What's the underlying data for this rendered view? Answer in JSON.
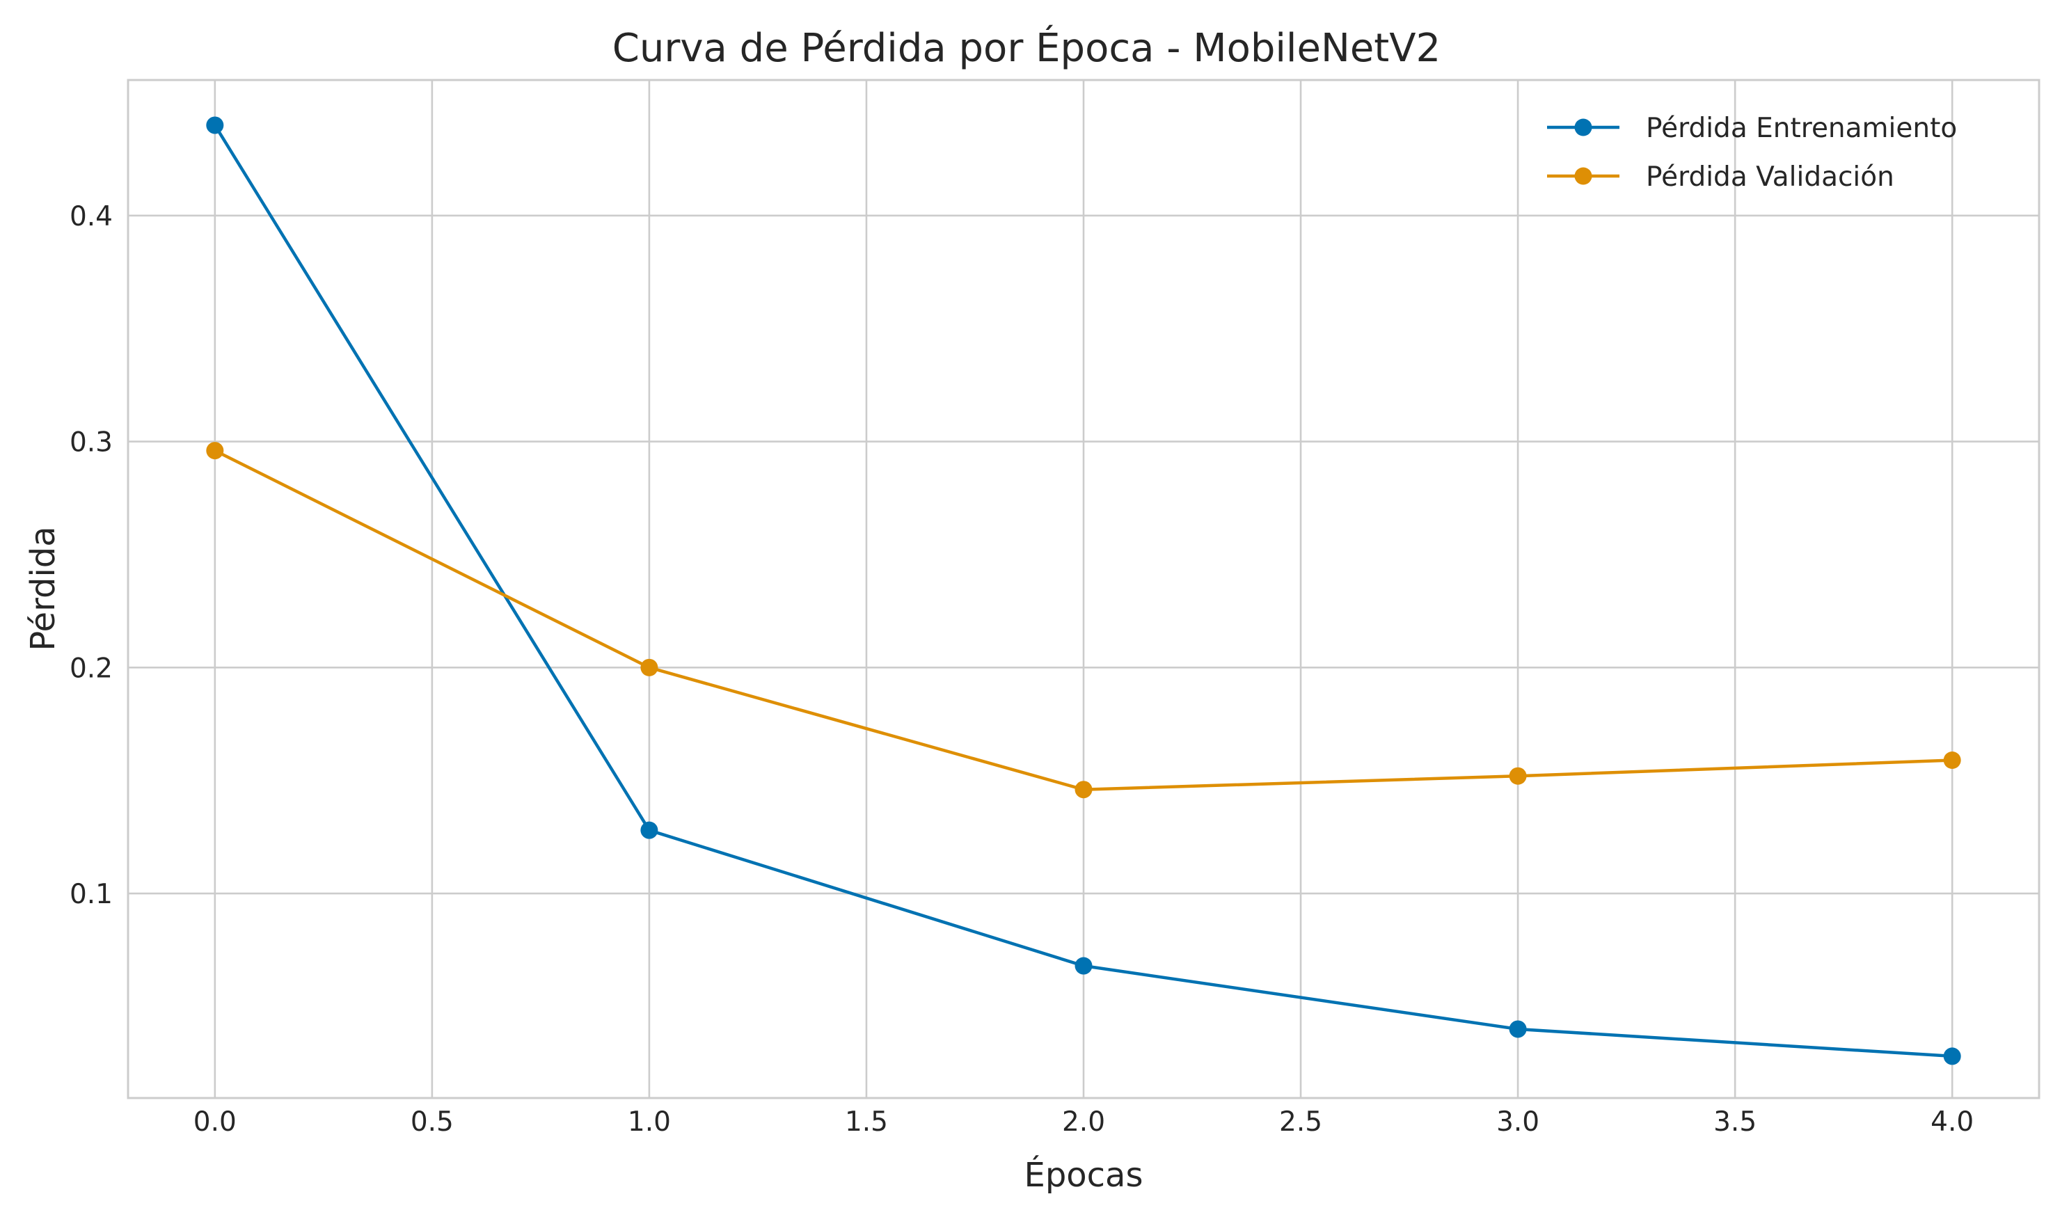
{
  "chart_data": {
    "type": "line",
    "title": "Curva de Pérdida por Época - MobileNetV2",
    "xlabel": "Épocas",
    "ylabel": "Pérdida",
    "x": [
      0,
      1,
      2,
      3,
      4
    ],
    "xlim": [
      -0.2,
      4.2
    ],
    "ylim": [
      0.0095,
      0.46
    ],
    "xticks": [
      0.0,
      0.5,
      1.0,
      1.5,
      2.0,
      2.5,
      3.0,
      3.5,
      4.0
    ],
    "xtick_labels": [
      "0.0",
      "0.5",
      "1.0",
      "1.5",
      "2.0",
      "2.5",
      "3.0",
      "3.5",
      "4.0"
    ],
    "yticks": [
      0.1,
      0.2,
      0.3,
      0.4
    ],
    "ytick_labels": [
      "0.1",
      "0.2",
      "0.3",
      "0.4"
    ],
    "grid": true,
    "legend_position": "top-right",
    "series": [
      {
        "name": "Pérdida Entrenamiento",
        "color": "#0072b2",
        "marker": "circle",
        "values": [
          0.44,
          0.128,
          0.068,
          0.04,
          0.028
        ]
      },
      {
        "name": "Pérdida Validación",
        "color": "#de8f05",
        "marker": "circle",
        "values": [
          0.296,
          0.2,
          0.146,
          0.152,
          0.159
        ]
      }
    ]
  }
}
